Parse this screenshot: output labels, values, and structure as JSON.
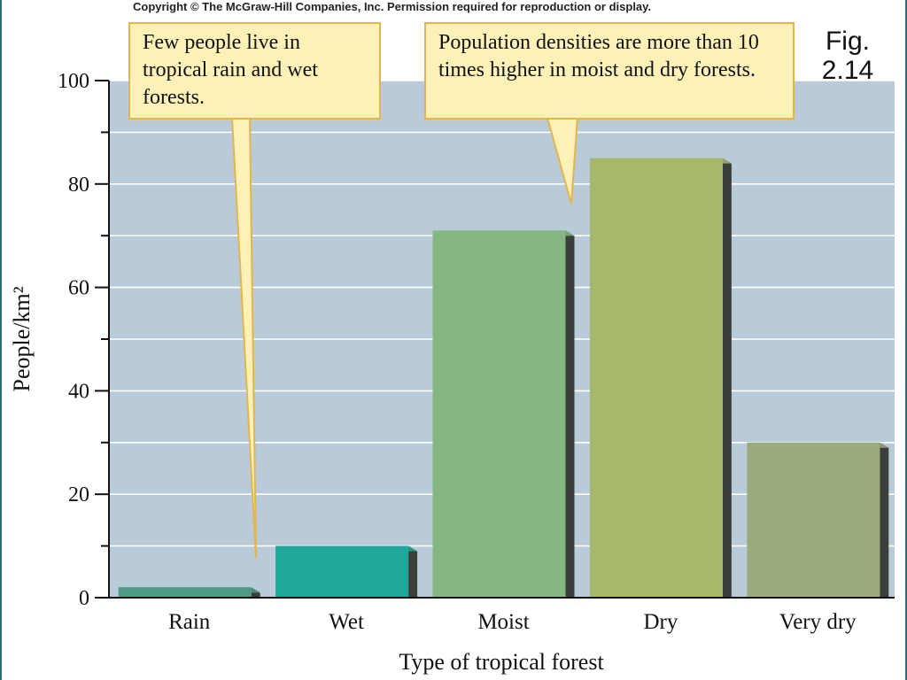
{
  "copyright": "Copyright © The McGraw-Hill Companies, Inc. Permission required for reproduction or display.",
  "figure_label_line1": "Fig.",
  "figure_label_line2": "2.14",
  "callouts": [
    "Few people live in tropical rain and wet forests.",
    "Population densities are more than 10 times higher in moist and dry forests."
  ],
  "colors": {
    "plot_background": "#b9cad8",
    "gridline": "#ffffff",
    "callout_fill": "#fdf1b8",
    "callout_border": "#e4b54a",
    "bars": [
      "#4e9b88",
      "#1fa89a",
      "#85b782",
      "#a6b86a",
      "#9aaa7c"
    ]
  },
  "chart_data": {
    "type": "bar",
    "categories": [
      "Rain",
      "Wet",
      "Moist",
      "Dry",
      "Very dry"
    ],
    "values": [
      2,
      10,
      71,
      85,
      30
    ],
    "xlabel": "Type of tropical forest",
    "ylabel": "People/km²",
    "ylim": [
      0,
      100
    ],
    "yticks": [
      0,
      20,
      40,
      60,
      80,
      100
    ],
    "grid": true
  }
}
